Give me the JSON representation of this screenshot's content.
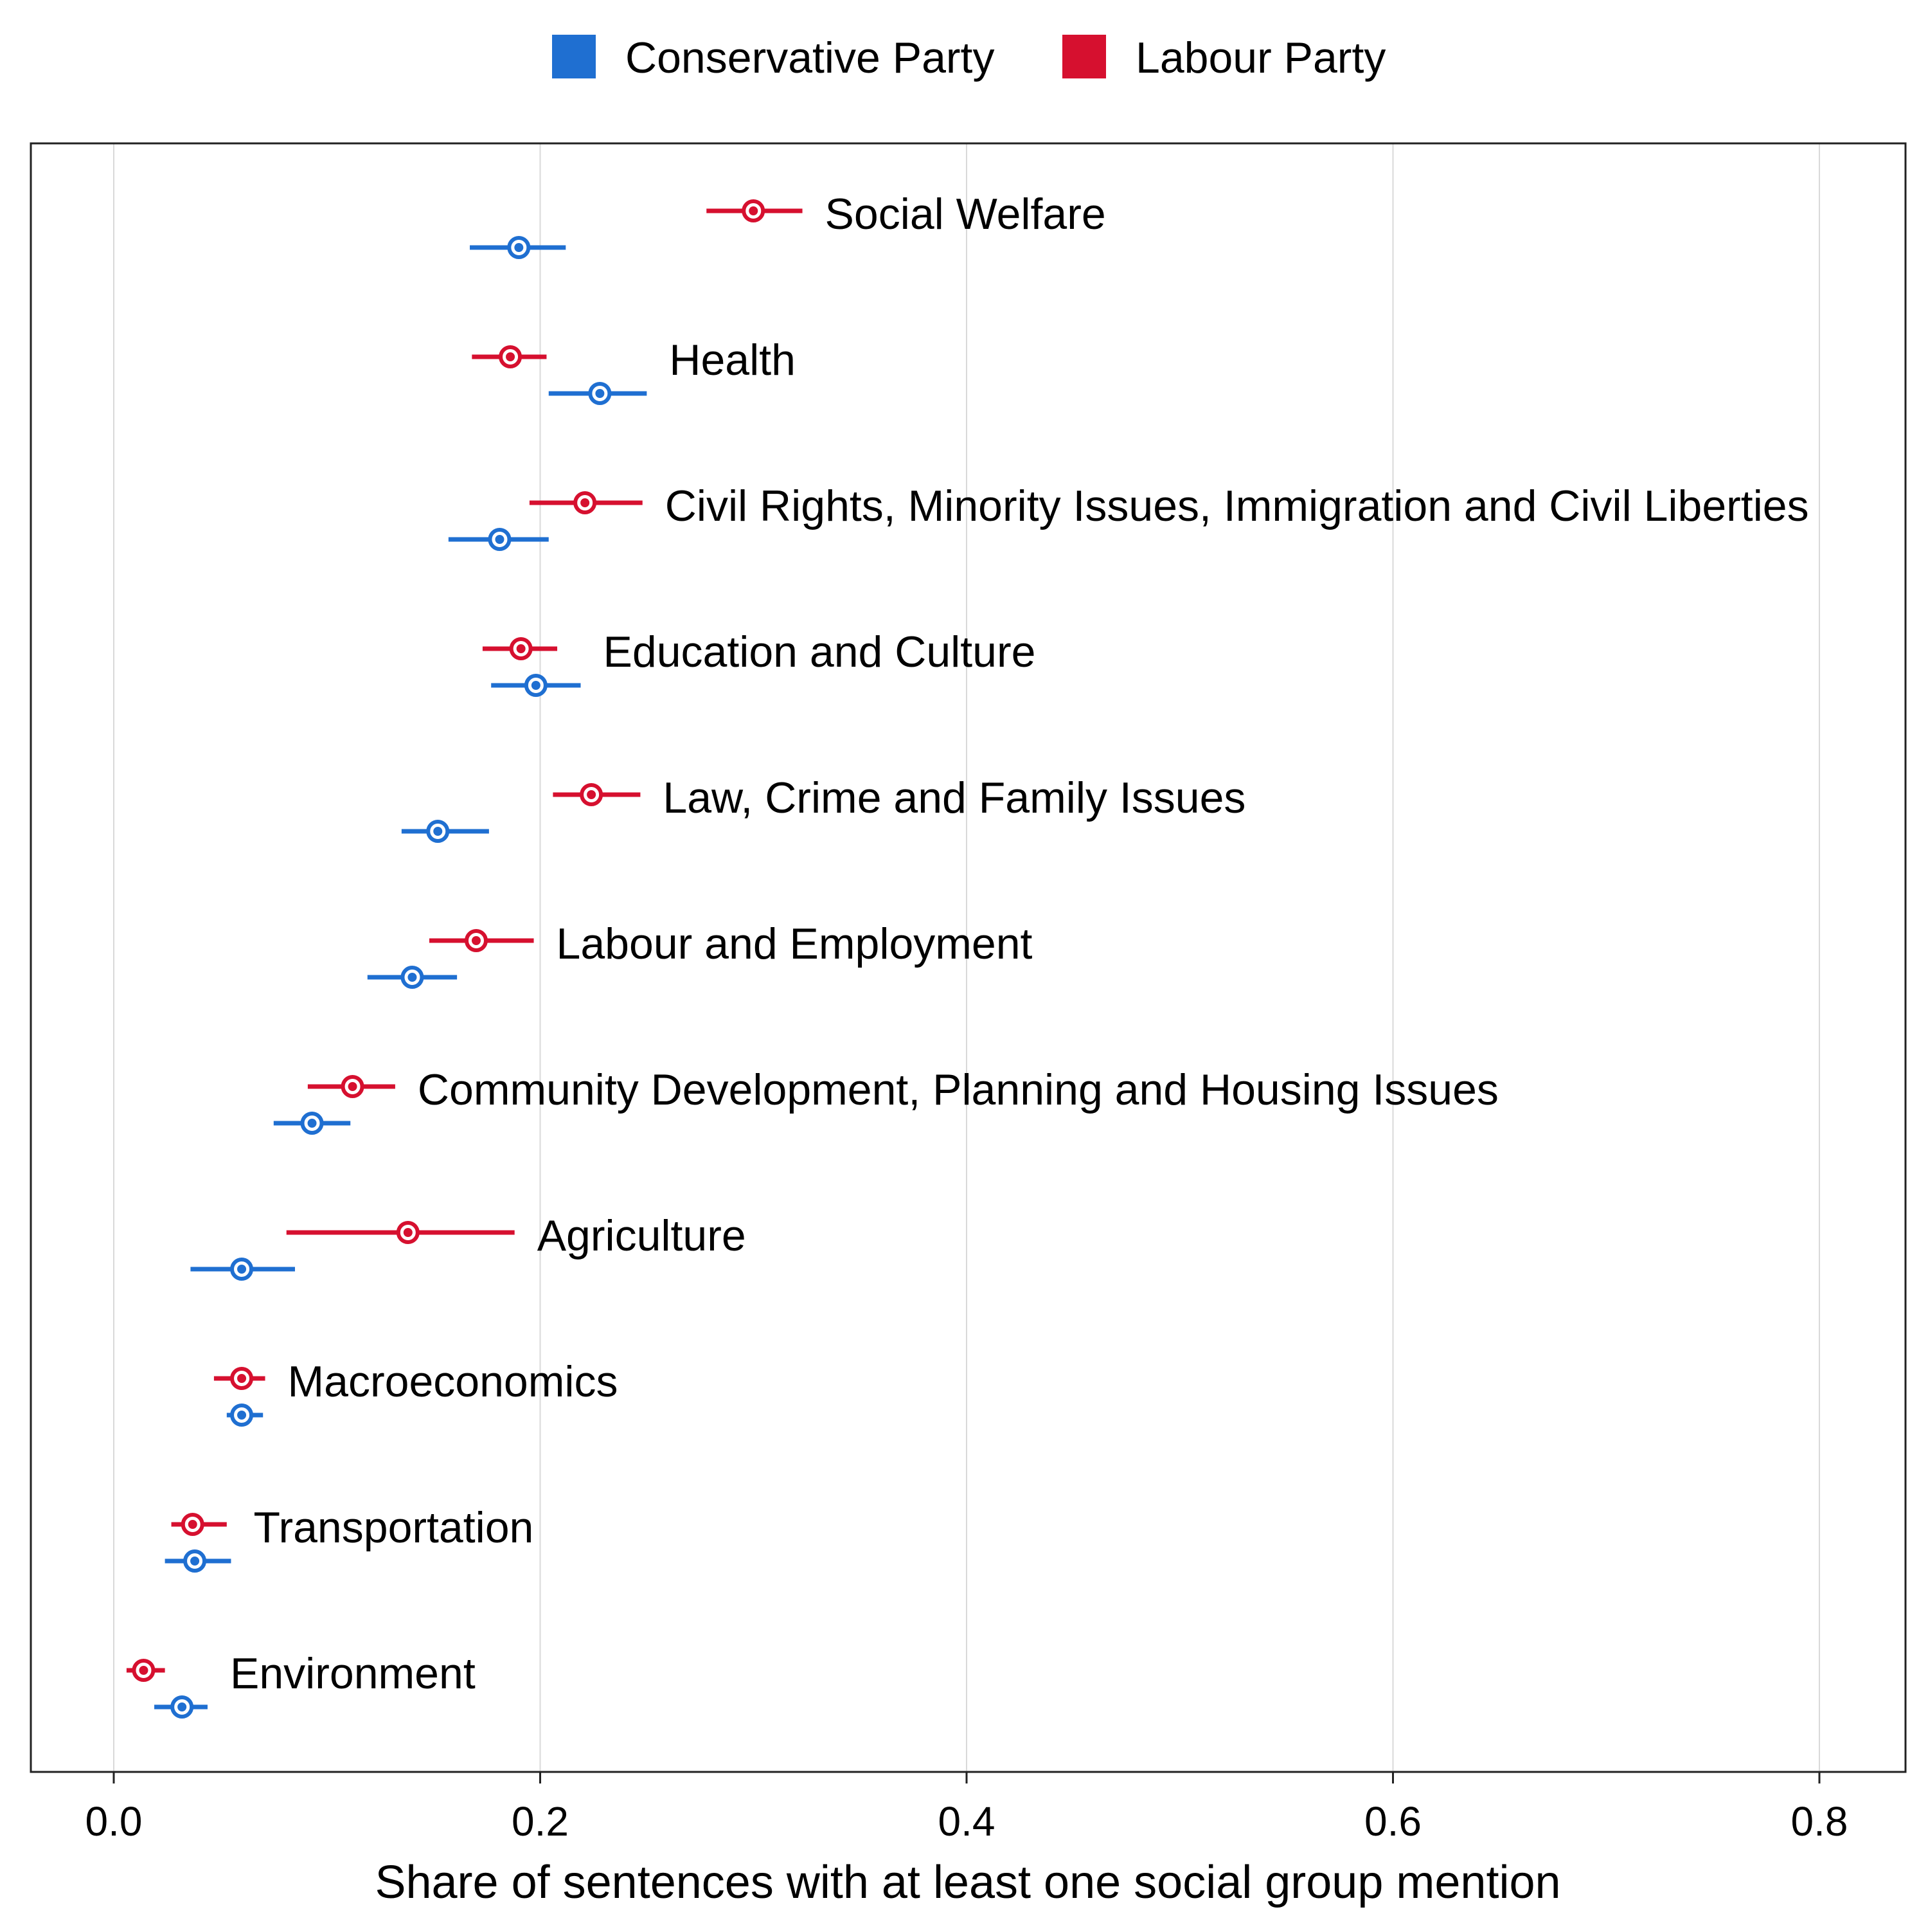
{
  "chart_data": {
    "type": "dot-interval",
    "xlabel": "Share of sentences with at least one social group mention",
    "xlim": [
      -0.04,
      0.84
    ],
    "xticks": [
      0.0,
      0.2,
      0.4,
      0.6,
      0.8
    ],
    "xtick_labels": [
      "0.0",
      "0.2",
      "0.4",
      "0.6",
      "0.8"
    ],
    "grid": "vertical",
    "legend_position": "top-center",
    "series": [
      {
        "name": "Conservative Party",
        "color": "#1f6fd1"
      },
      {
        "name": "Labour Party",
        "color": "#d6102f"
      }
    ],
    "categories": [
      {
        "label": "Social Welfare",
        "labour": {
          "estimate": 0.3,
          "lower": 0.278,
          "upper": 0.323
        },
        "conservative": {
          "estimate": 0.19,
          "lower": 0.167,
          "upper": 0.212
        }
      },
      {
        "label": "Health",
        "labour": {
          "estimate": 0.186,
          "lower": 0.168,
          "upper": 0.203
        },
        "conservative": {
          "estimate": 0.228,
          "lower": 0.204,
          "upper": 0.25
        }
      },
      {
        "label": "Civil Rights, Minority Issues, Immigration and Civil Liberties",
        "labour": {
          "estimate": 0.221,
          "lower": 0.195,
          "upper": 0.248
        },
        "conservative": {
          "estimate": 0.181,
          "lower": 0.157,
          "upper": 0.204
        }
      },
      {
        "label": "Education and Culture",
        "labour": {
          "estimate": 0.191,
          "lower": 0.173,
          "upper": 0.208
        },
        "conservative": {
          "estimate": 0.198,
          "lower": 0.177,
          "upper": 0.219
        }
      },
      {
        "label": "Law, Crime and Family Issues",
        "labour": {
          "estimate": 0.224,
          "lower": 0.206,
          "upper": 0.247
        },
        "conservative": {
          "estimate": 0.152,
          "lower": 0.135,
          "upper": 0.176
        }
      },
      {
        "label": "Labour and Employment",
        "labour": {
          "estimate": 0.17,
          "lower": 0.148,
          "upper": 0.197
        },
        "conservative": {
          "estimate": 0.14,
          "lower": 0.119,
          "upper": 0.161
        }
      },
      {
        "label": "Community Development, Planning and Housing Issues",
        "labour": {
          "estimate": 0.112,
          "lower": 0.091,
          "upper": 0.132
        },
        "conservative": {
          "estimate": 0.093,
          "lower": 0.075,
          "upper": 0.111
        }
      },
      {
        "label": "Agriculture",
        "labour": {
          "estimate": 0.138,
          "lower": 0.081,
          "upper": 0.188
        },
        "conservative": {
          "estimate": 0.06,
          "lower": 0.036,
          "upper": 0.085
        }
      },
      {
        "label": "Macroeconomics",
        "labour": {
          "estimate": 0.06,
          "lower": 0.047,
          "upper": 0.071
        },
        "conservative": {
          "estimate": 0.06,
          "lower": 0.053,
          "upper": 0.07
        }
      },
      {
        "label": "Transportation",
        "labour": {
          "estimate": 0.037,
          "lower": 0.027,
          "upper": 0.053
        },
        "conservative": {
          "estimate": 0.038,
          "lower": 0.024,
          "upper": 0.055
        }
      },
      {
        "label": "Environment",
        "labour": {
          "estimate": 0.014,
          "lower": 0.006,
          "upper": 0.024
        },
        "conservative": {
          "estimate": 0.032,
          "lower": 0.019,
          "upper": 0.044
        }
      }
    ]
  }
}
